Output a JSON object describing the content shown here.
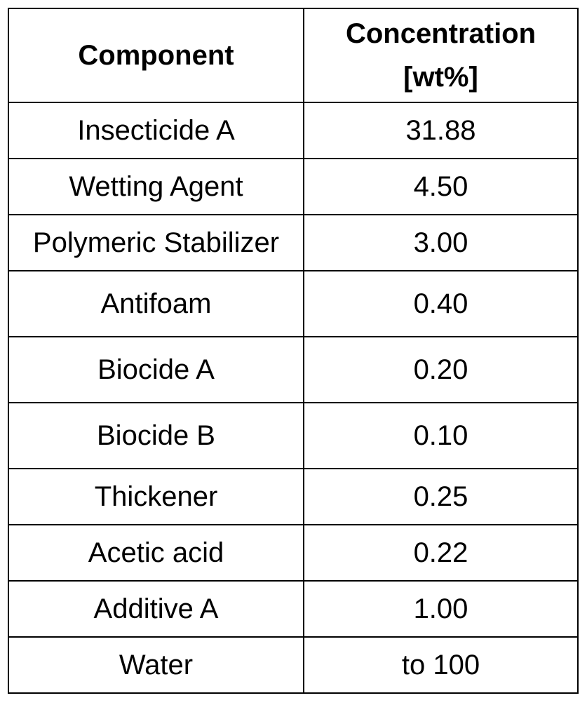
{
  "table": {
    "header": [
      "Component",
      "Concentration [wt%]"
    ],
    "rows": [
      [
        "Insecticide A",
        "31.88"
      ],
      [
        "Wetting Agent",
        "4.50"
      ],
      [
        "Polymeric Stabilizer",
        "3.00"
      ],
      [
        "Antifoam",
        "0.40"
      ],
      [
        "Biocide A",
        "0.20"
      ],
      [
        "Biocide B",
        "0.10"
      ],
      [
        "Thickener",
        "0.25"
      ],
      [
        "Acetic acid",
        "0.22"
      ],
      [
        "Additive A",
        "1.00"
      ],
      [
        "Water",
        "to 100"
      ]
    ]
  }
}
